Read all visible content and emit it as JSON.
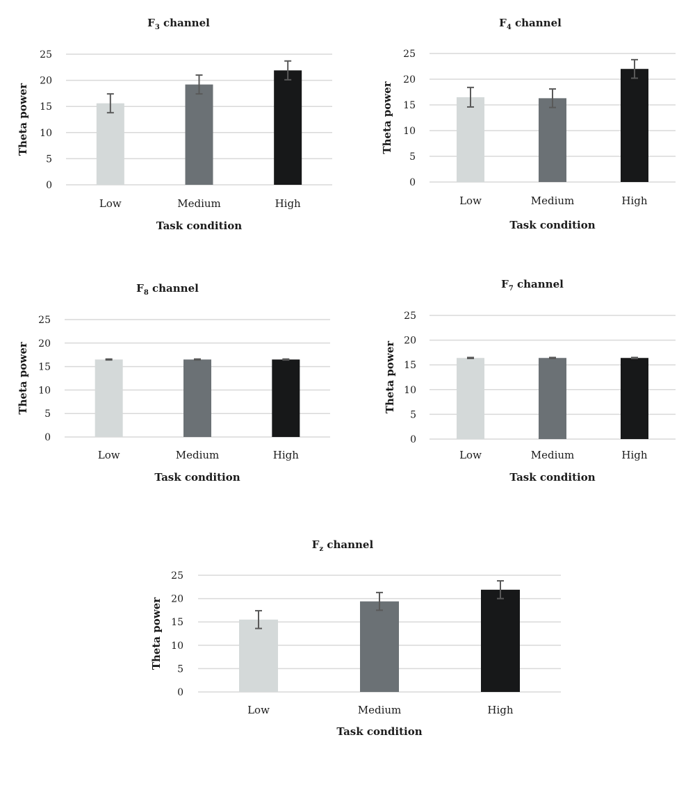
{
  "chart_data": [
    {
      "type": "bar",
      "title": "F3 channel",
      "title_main": "F",
      "title_sub": "3",
      "title_rest": " channel",
      "categories": [
        "Low",
        "Medium",
        "High"
      ],
      "values": [
        15.6,
        19.2,
        21.9
      ],
      "errors": [
        1.8,
        1.8,
        1.8
      ],
      "xlabel": "Task condition",
      "ylabel": "Theta power",
      "ylim": [
        0,
        25
      ],
      "yticks": [
        "0",
        "5",
        "10",
        "15",
        "20",
        "25"
      ],
      "colors": [
        "#d4d9d9",
        "#6b7175",
        "#171819"
      ],
      "grid": true
    },
    {
      "type": "bar",
      "title": "F4 channel",
      "title_main": "F",
      "title_sub": "4",
      "title_rest": " channel",
      "categories": [
        "Low",
        "Medium",
        "High"
      ],
      "values": [
        16.5,
        16.3,
        22.0
      ],
      "errors": [
        1.9,
        1.8,
        1.8
      ],
      "xlabel": "Task condition",
      "ylabel": "Theta power",
      "ylim": [
        0,
        25
      ],
      "yticks": [
        "0",
        "5",
        "10",
        "15",
        "20",
        "25"
      ],
      "colors": [
        "#d4d9d9",
        "#6b7175",
        "#171819"
      ],
      "grid": true
    },
    {
      "type": "bar",
      "title": "F8 channel",
      "title_main": "F",
      "title_sub": "8",
      "title_rest": " channel",
      "categories": [
        "Low",
        "Medium",
        "High"
      ],
      "values": [
        16.5,
        16.5,
        16.5
      ],
      "errors": [
        0.1,
        0.1,
        0.1
      ],
      "xlabel": "Task condition",
      "ylabel": "Theta power",
      "ylim": [
        0,
        25
      ],
      "yticks": [
        "0",
        "5",
        "10",
        "15",
        "20",
        "25"
      ],
      "colors": [
        "#d4d9d9",
        "#6b7175",
        "#171819"
      ],
      "grid": true
    },
    {
      "type": "bar",
      "title": "F7 channel",
      "title_main": "F",
      "title_sub": "7",
      "title_rest": " channel",
      "categories": [
        "Low",
        "Medium",
        "High"
      ],
      "values": [
        16.4,
        16.4,
        16.4
      ],
      "errors": [
        0.1,
        0.1,
        0.1
      ],
      "xlabel": "Task condition",
      "ylabel": "Theta power",
      "ylim": [
        0,
        25
      ],
      "yticks": [
        "0",
        "5",
        "10",
        "15",
        "20",
        "25"
      ],
      "colors": [
        "#d4d9d9",
        "#6b7175",
        "#171819"
      ],
      "grid": true
    },
    {
      "type": "bar",
      "title": "Fz channel",
      "title_main": "F",
      "title_sub": "z",
      "title_rest": " channel",
      "categories": [
        "Low",
        "Medium",
        "High"
      ],
      "values": [
        15.5,
        19.4,
        21.9
      ],
      "errors": [
        1.9,
        1.9,
        1.9
      ],
      "xlabel": "Task condition",
      "ylabel": "Theta power",
      "ylim": [
        0,
        25
      ],
      "yticks": [
        "0",
        "5",
        "10",
        "15",
        "20",
        "25"
      ],
      "colors": [
        "#d4d9d9",
        "#6b7175",
        "#171819"
      ],
      "grid": true
    }
  ]
}
